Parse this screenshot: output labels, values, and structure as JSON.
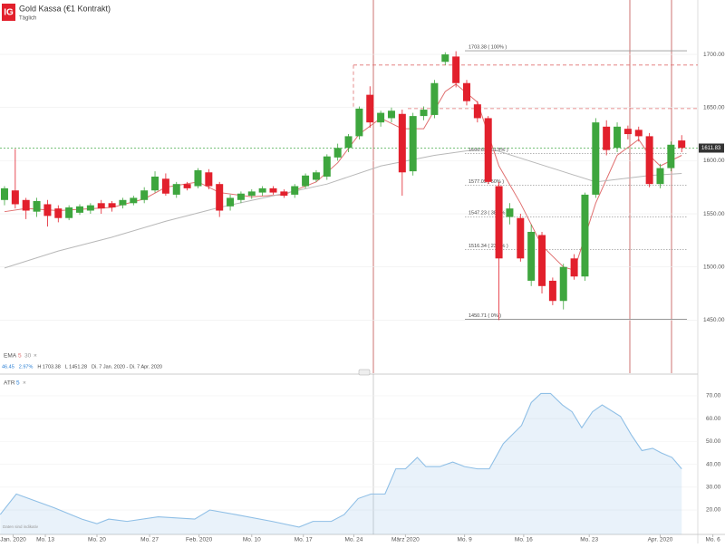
{
  "header": {
    "logo": "IG",
    "title": "Gold Kassa (€1 Kontrakt)",
    "interval": "Täglich"
  },
  "chart_data": [
    {
      "type": "candlestick",
      "xlim": [
        -0.42,
        64.5
      ],
      "xticks": [
        {
          "value": 0.8,
          "label": "Jan. 2020"
        },
        {
          "value": 3.8,
          "label": "Mo. 13"
        },
        {
          "value": 8.6,
          "label": "Mo. 20"
        },
        {
          "value": 13.5,
          "label": "Mo. 27"
        },
        {
          "value": 18.1,
          "label": "Feb. 2020"
        },
        {
          "value": 23.0,
          "label": "Mo. 10"
        },
        {
          "value": 27.8,
          "label": "Mo. 17"
        },
        {
          "value": 32.5,
          "label": "Mo. 24"
        },
        {
          "value": 37.3,
          "label": "März 2020"
        },
        {
          "value": 42.8,
          "label": "Mo. 9"
        },
        {
          "value": 48.3,
          "label": "Mo. 16"
        },
        {
          "value": 54.4,
          "label": "Mo. 23"
        },
        {
          "value": 61.0,
          "label": "Apr. 2020"
        },
        {
          "value": 65.9,
          "label": "Mo. 6"
        }
      ],
      "ylim": [
        1400,
        1751.2
      ],
      "yticks": [
        {
          "value": 1700,
          "label": "1700.00"
        },
        {
          "value": 1650,
          "label": "1650.00"
        },
        {
          "value": 1600,
          "label": "1600.00"
        },
        {
          "value": 1550,
          "label": "1550.00"
        },
        {
          "value": 1500,
          "label": "1500.00"
        },
        {
          "value": 1450,
          "label": "1450.00"
        }
      ],
      "up_color": "#3ea63e",
      "down_color": "#e2202c",
      "open": [
        1563,
        1572,
        1563,
        1552,
        1559,
        1555,
        1546,
        1551,
        1553,
        1560,
        1560,
        1558,
        1560,
        1563,
        1572,
        1583,
        1568,
        1578,
        1576,
        1589,
        1578,
        1557,
        1563,
        1567,
        1570,
        1574,
        1571,
        1568,
        1576,
        1582,
        1585,
        1603,
        1612,
        1623,
        1662,
        1636,
        1640,
        1644,
        1590,
        1642,
        1643,
        1693,
        1698,
        1673,
        1653,
        1640,
        1576,
        1547,
        1546,
        1487,
        1530,
        1487,
        1468,
        1508,
        1491,
        1568,
        1632,
        1612,
        1630,
        1629,
        1623,
        1578,
        1593,
        1619
      ],
      "high": [
        1576,
        1611,
        1565,
        1565,
        1563,
        1558,
        1558,
        1559,
        1560,
        1563,
        1562,
        1565,
        1567,
        1575,
        1590,
        1588,
        1580,
        1580,
        1593,
        1592,
        1580,
        1568,
        1571,
        1573,
        1576,
        1576,
        1573,
        1578,
        1588,
        1591,
        1606,
        1616,
        1625,
        1651,
        1670,
        1647,
        1650,
        1648,
        1645,
        1651,
        1676,
        1702,
        1703,
        1676,
        1656,
        1642,
        1580,
        1560,
        1550,
        1540,
        1533,
        1490,
        1503,
        1512,
        1570,
        1640,
        1638,
        1636,
        1633,
        1632,
        1626,
        1597,
        1618,
        1624
      ],
      "low": [
        1558,
        1555,
        1545,
        1547,
        1538,
        1542,
        1544,
        1549,
        1550,
        1550,
        1552,
        1555,
        1558,
        1560,
        1570,
        1567,
        1565,
        1572,
        1574,
        1573,
        1547,
        1553,
        1560,
        1564,
        1567,
        1568,
        1565,
        1565,
        1574,
        1580,
        1582,
        1600,
        1608,
        1620,
        1631,
        1632,
        1636,
        1567,
        1586,
        1638,
        1640,
        1690,
        1669,
        1652,
        1636,
        1578,
        1450,
        1540,
        1505,
        1482,
        1475,
        1464,
        1460,
        1488,
        1487,
        1565,
        1605,
        1608,
        1620,
        1618,
        1575,
        1574,
        1590,
        1608
      ],
      "close": [
        1574,
        1559,
        1553,
        1562,
        1548,
        1546,
        1556,
        1557,
        1558,
        1555,
        1556,
        1563,
        1565,
        1572,
        1585,
        1569,
        1578,
        1574,
        1591,
        1576,
        1553,
        1565,
        1569,
        1571,
        1574,
        1570,
        1567,
        1576,
        1586,
        1589,
        1604,
        1612,
        1623,
        1649,
        1636,
        1645,
        1647,
        1589,
        1642,
        1648,
        1673,
        1700,
        1673,
        1656,
        1640,
        1580,
        1508,
        1555,
        1508,
        1533,
        1482,
        1468,
        1500,
        1491,
        1568,
        1636,
        1610,
        1632,
        1625,
        1623,
        1578,
        1593,
        1615,
        1612
      ],
      "series": [
        {
          "name": "EMA 5",
          "color": "#e07070",
          "x": [
            0,
            2,
            5,
            10,
            13,
            15,
            18,
            20,
            23,
            26,
            29,
            31,
            33,
            35,
            37,
            39,
            41,
            42,
            44,
            46,
            48,
            50,
            52,
            53,
            55,
            57,
            59,
            60,
            61,
            63
          ],
          "values": [
            1552,
            1555,
            1553,
            1556,
            1564,
            1575,
            1580,
            1570,
            1566,
            1568,
            1580,
            1598,
            1625,
            1640,
            1630,
            1630,
            1665,
            1672,
            1655,
            1595,
            1560,
            1520,
            1500,
            1497,
            1560,
            1605,
            1620,
            1605,
            1595,
            1605
          ]
        },
        {
          "name": "EMA 30",
          "color": "#b8b8b8",
          "x": [
            0,
            5,
            10,
            15,
            20,
            25,
            30,
            35,
            40,
            45,
            50,
            55,
            60,
            63
          ],
          "values": [
            1499,
            1515,
            1528,
            1543,
            1556,
            1567,
            1578,
            1595,
            1605,
            1612,
            1596,
            1580,
            1586,
            1588
          ]
        }
      ],
      "fib_levels": [
        {
          "value": 1703.38,
          "label": "1703.38 ( 100% )"
        },
        {
          "value": 1606.69,
          "label": "1606.69 ( 61.8% )"
        },
        {
          "value": 1577.05,
          "label": "1577.05 ( 50% )"
        },
        {
          "value": 1547.23,
          "label": "1547.23 ( 38.2% )"
        },
        {
          "value": 1516.34,
          "label": "1516.34 ( 23.6% )"
        },
        {
          "value": 1450.71,
          "label": "1450.71 ( 0% )"
        }
      ],
      "horizontal_lines": [
        1690,
        1649
      ],
      "last_price": 1611.83,
      "legend": {
        "name": "EMA",
        "p1": "5",
        "p2": "30",
        "info": [
          "46.45",
          "2.97%",
          "H 1703.38",
          "L 1451.28",
          "Di. 7 Jan. 2020 - Di. 7 Apr. 2020"
        ]
      }
    },
    {
      "type": "area",
      "name": "ATR",
      "param": "5",
      "color": "#8fbfe6",
      "ylim": [
        9.3,
        78.7
      ],
      "yticks": [
        {
          "value": 70,
          "label": "70.00"
        },
        {
          "value": 60,
          "label": "60.00"
        },
        {
          "value": 50,
          "label": "50.00"
        },
        {
          "value": 40,
          "label": "40.00"
        },
        {
          "value": 30,
          "label": "30.00"
        },
        {
          "value": 20,
          "label": "20.00"
        }
      ],
      "x": [
        -0.4,
        1.1,
        4.6,
        7.2,
        8.6,
        9.7,
        11.4,
        14.3,
        17.7,
        19.1,
        21.5,
        24.9,
        27.4,
        28.7,
        30.4,
        31.6,
        32.9,
        34.1,
        35.4,
        36.4,
        37.3,
        38.4,
        39.2,
        40.5,
        41.7,
        42.8,
        44.0,
        45.1,
        46.4,
        48.1,
        49.0,
        49.9,
        50.8,
        51.9,
        52.8,
        53.7,
        54.7,
        55.6,
        57.3,
        58.3,
        59.3,
        60.3,
        61.1,
        62.1,
        63.0
      ],
      "values": [
        18,
        27,
        21,
        16,
        14,
        16,
        15,
        17,
        16,
        20,
        18,
        15,
        12.5,
        15,
        15,
        18,
        25,
        27,
        27,
        38,
        38,
        43,
        39,
        39,
        41,
        39,
        38,
        38,
        49,
        57,
        67,
        71,
        71,
        66,
        63,
        56,
        63,
        66,
        61,
        53,
        46,
        47,
        45,
        43,
        38
      ],
      "note": "Daten sind indikativ"
    }
  ]
}
